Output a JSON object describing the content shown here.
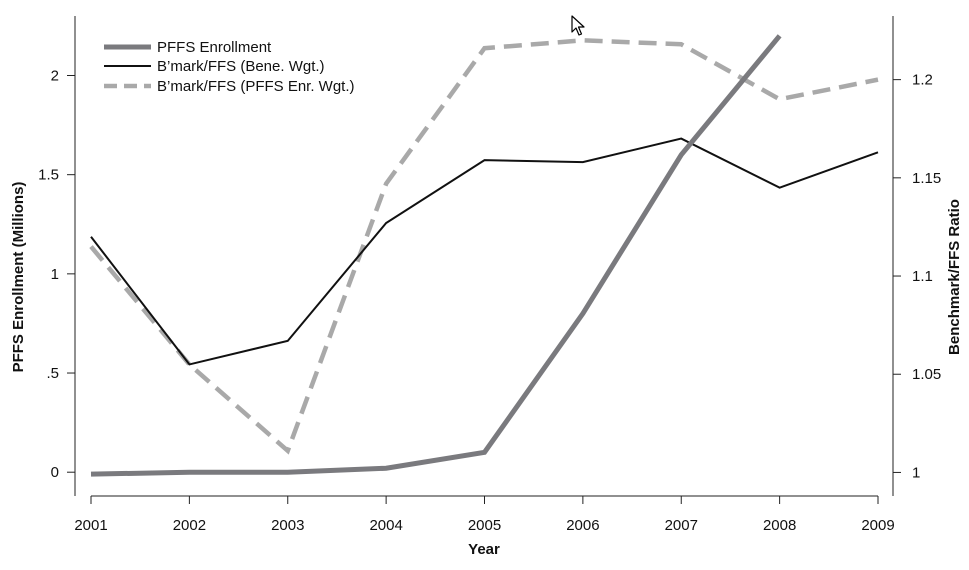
{
  "chart_data": {
    "type": "line",
    "x": [
      2001,
      2002,
      2003,
      2004,
      2005,
      2006,
      2007,
      2008,
      2009
    ],
    "xlabel": "Year",
    "ylabel_left": "PFFS Enrollment (Millions)",
    "ylabel_right": "Benchmark/FFS Ratio",
    "ylim_left": [
      -0.12,
      2.3
    ],
    "ylim_right": [
      0.988,
      1.2324
    ],
    "yticks_left": [
      0,
      0.5,
      1,
      1.5,
      2
    ],
    "yticks_left_labels": [
      "0",
      ".5",
      "1",
      "1.5",
      "2"
    ],
    "yticks_right": [
      1,
      1.05,
      1.1,
      1.15,
      1.2
    ],
    "yticks_right_labels": [
      "1",
      "1.05",
      "1.1",
      "1.15",
      "1.2"
    ],
    "xticks_labels": [
      "2001",
      "2002",
      "2003",
      "2004",
      "2005",
      "2006",
      "2007",
      "2008",
      "2009"
    ],
    "legend_position": "top-left",
    "grid": false,
    "series": [
      {
        "name": "PFFS Enrollment",
        "axis": "left",
        "style": "thick",
        "color": "#7a7a7e",
        "values": [
          -0.01,
          0.0,
          0.0,
          0.02,
          0.1,
          0.8,
          1.6,
          2.2,
          null
        ]
      },
      {
        "name": "B’mark/FFS (Bene. Wgt.)",
        "axis": "right",
        "style": "thin",
        "color": "#111111",
        "values": [
          1.12,
          1.055,
          1.067,
          1.127,
          1.159,
          1.158,
          1.17,
          1.145,
          1.163
        ]
      },
      {
        "name": "B’mark/FFS (PFFS Enr. Wgt.)",
        "axis": "right",
        "style": "dashed",
        "color": "#a9a9a9",
        "values": [
          1.115,
          1.055,
          1.011,
          1.147,
          1.216,
          1.22,
          1.218,
          1.19,
          1.2
        ]
      }
    ]
  }
}
